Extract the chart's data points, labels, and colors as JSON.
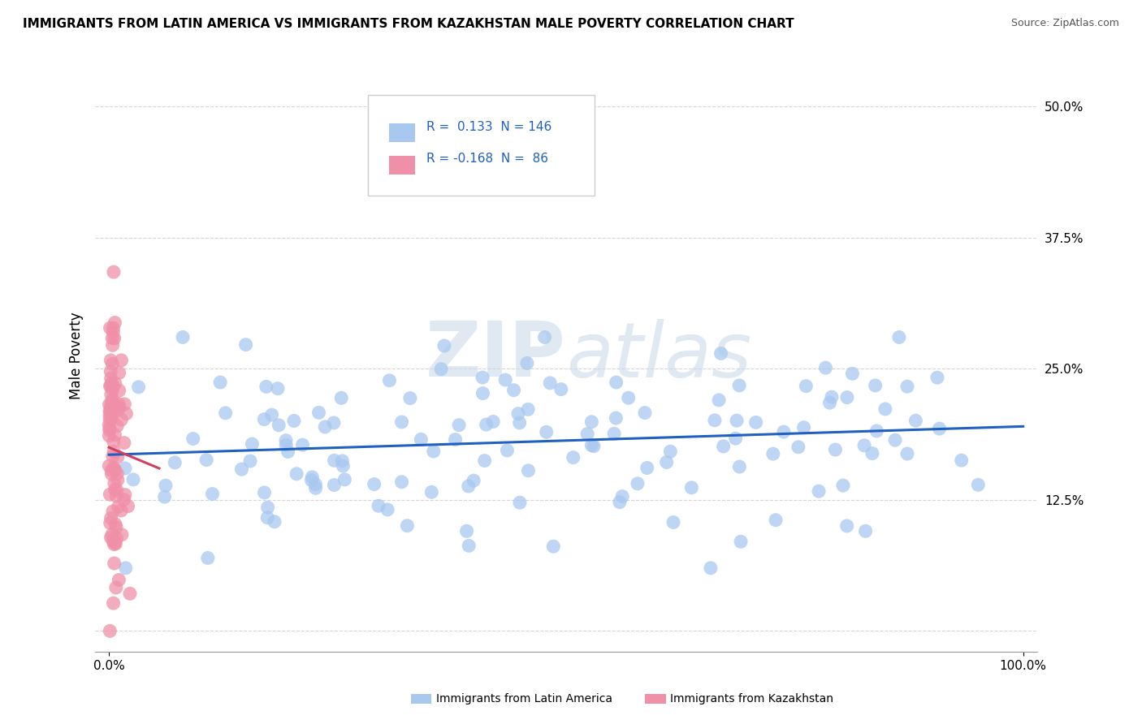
{
  "title": "IMMIGRANTS FROM LATIN AMERICA VS IMMIGRANTS FROM KAZAKHSTAN MALE POVERTY CORRELATION CHART",
  "source": "Source: ZipAtlas.com",
  "ylabel": "Male Poverty",
  "blue_dot_color": "#a8c8f0",
  "blue_line_color": "#2060c0",
  "pink_dot_color": "#f090a8",
  "pink_line_color": "#d04060",
  "watermark_color": "#d0dce8",
  "background_color": "#ffffff",
  "title_fontsize": 11,
  "source_fontsize": 9,
  "legend_R1": "0.133",
  "legend_N1": "146",
  "legend_R2": "-0.168",
  "legend_N2": "86",
  "legend_label1": "Immigrants from Latin America",
  "legend_label2": "Immigrants from Kazakhstan"
}
